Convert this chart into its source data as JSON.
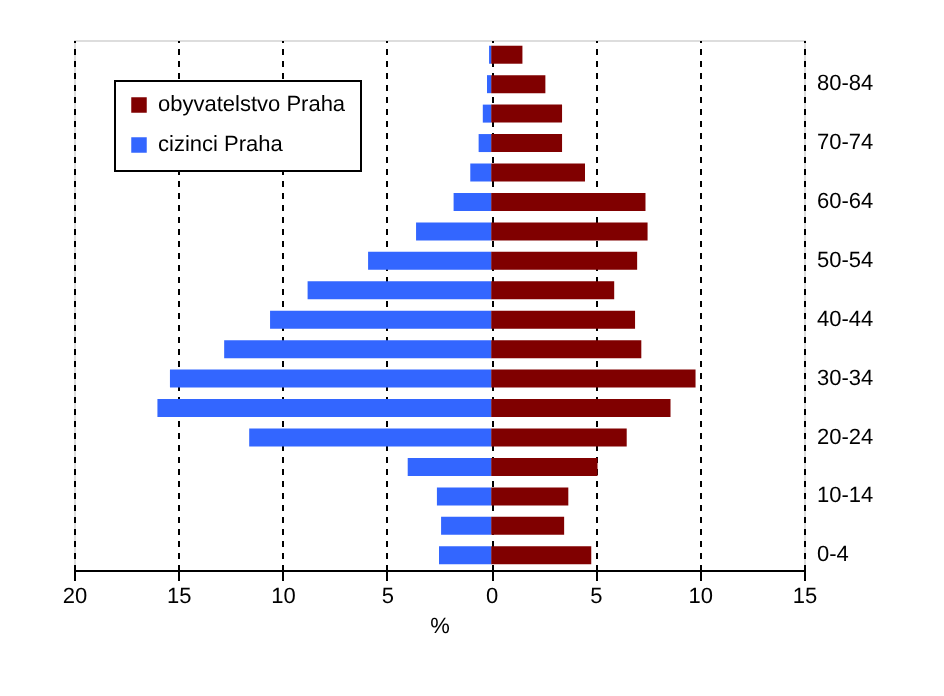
{
  "chart_data": {
    "type": "bar",
    "orientation": "horizontal",
    "xlabel": "%",
    "categories": [
      null,
      "80-84",
      null,
      "70-74",
      null,
      "60-64",
      null,
      "50-54",
      null,
      "40-44",
      null,
      "30-34",
      null,
      "20-24",
      null,
      "10-14",
      null,
      "0-4"
    ],
    "series": [
      {
        "name": "obyvatelstvo Praha",
        "color": "#800000",
        "values": [
          1.5,
          2.6,
          3.4,
          3.4,
          4.5,
          7.4,
          7.5,
          7.0,
          5.9,
          6.9,
          7.2,
          9.8,
          8.6,
          6.5,
          5.1,
          3.7,
          3.5,
          4.8
        ]
      },
      {
        "name": "cizinci Praha",
        "color": "#3366ff",
        "values": [
          -0.1,
          -0.2,
          -0.4,
          -0.6,
          -1.0,
          -1.8,
          -3.6,
          -5.9,
          -8.8,
          -10.6,
          -12.8,
          -15.4,
          -16.0,
          -11.6,
          -4.0,
          -2.6,
          -2.4,
          -2.5
        ]
      }
    ],
    "xlim": [
      -20,
      15
    ],
    "xticks": [
      {
        "value": -20,
        "label": "20"
      },
      {
        "value": -15,
        "label": "15"
      },
      {
        "value": -10,
        "label": "10"
      },
      {
        "value": -5,
        "label": "5"
      },
      0,
      5,
      10,
      15
    ],
    "grid": "x",
    "legend": "top left",
    "stacked": true
  }
}
